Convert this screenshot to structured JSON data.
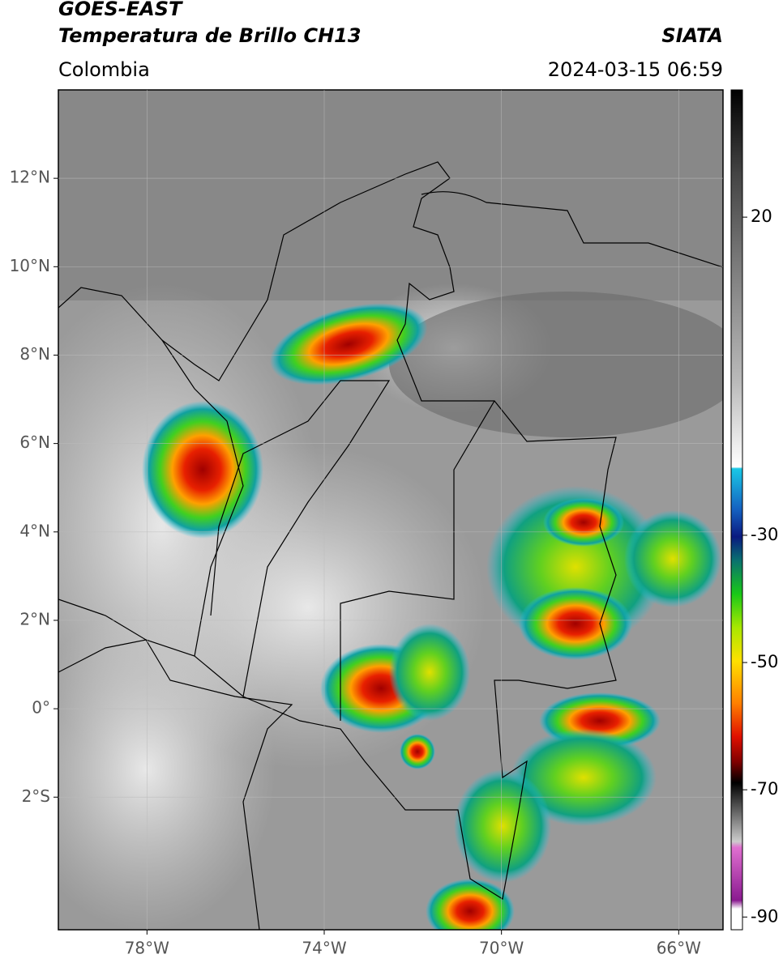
{
  "header": {
    "title": "GOES-EAST",
    "subtitle": "Temperatura de Brillo CH13",
    "agency": "SIATA",
    "region": "Colombia",
    "timestamp": "2024-03-15 06:59"
  },
  "map": {
    "xlim": [
      -80,
      -65
    ],
    "ylim": [
      -5,
      14
    ],
    "xticks": [
      {
        "value": -78,
        "label": "78°W"
      },
      {
        "value": -74,
        "label": "74°W"
      },
      {
        "value": -70,
        "label": "70°W"
      },
      {
        "value": -66,
        "label": "66°W"
      }
    ],
    "yticks": [
      {
        "value": 12,
        "label": "12°N"
      },
      {
        "value": 10,
        "label": "10°N"
      },
      {
        "value": 8,
        "label": "8°N"
      },
      {
        "value": 6,
        "label": "6°N"
      },
      {
        "value": 4,
        "label": "4°N"
      },
      {
        "value": 2,
        "label": "2°N"
      },
      {
        "value": 0,
        "label": "0°"
      },
      {
        "value": -2,
        "label": "2°S"
      }
    ],
    "grid": true
  },
  "colorbar": {
    "lim": [
      -92,
      40
    ],
    "ticks": [
      20,
      -30,
      -50,
      -70,
      -90
    ]
  }
}
